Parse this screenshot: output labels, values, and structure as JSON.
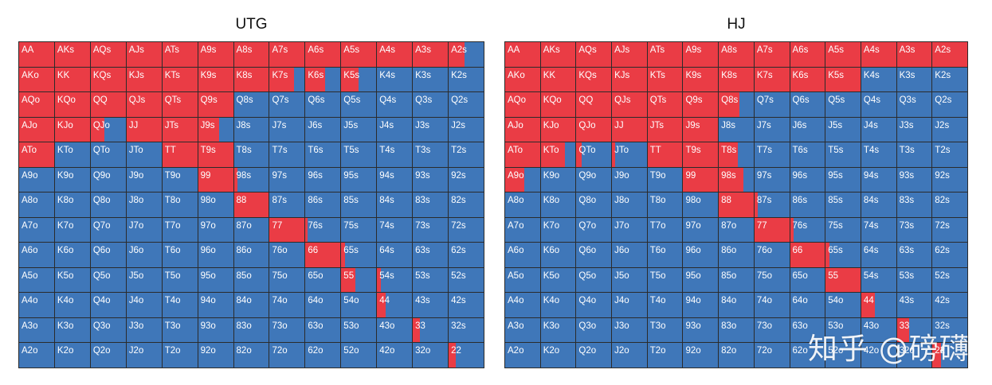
{
  "colors": {
    "raise": "#ea3c45",
    "fold": "#3f77b9",
    "grid_line": "#2b2b2b"
  },
  "ranks": [
    "A",
    "K",
    "Q",
    "J",
    "T",
    "9",
    "8",
    "7",
    "6",
    "5",
    "4",
    "3",
    "2"
  ],
  "charts": [
    {
      "id": "utg",
      "title": "UTG",
      "raise_fractions": [
        [
          1,
          1,
          1,
          1,
          1,
          1,
          1,
          1,
          1,
          1,
          1,
          1,
          0.45
        ],
        [
          1,
          1,
          1,
          1,
          1,
          1,
          1,
          0.7,
          0.55,
          0.5,
          0,
          0,
          0
        ],
        [
          1,
          1,
          1,
          1,
          1,
          1,
          0,
          0,
          0,
          0,
          0,
          0,
          0
        ],
        [
          1,
          1,
          0.4,
          1,
          1,
          0.6,
          0,
          0,
          0,
          0,
          0,
          0,
          0
        ],
        [
          1,
          0,
          0,
          0,
          1,
          1,
          0,
          0,
          0,
          0,
          0,
          0,
          0
        ],
        [
          0,
          0,
          0,
          0,
          0,
          1,
          0.1,
          0,
          0,
          0,
          0,
          0,
          0
        ],
        [
          0,
          0,
          0,
          0,
          0,
          0,
          1,
          0,
          0,
          0,
          0,
          0,
          0
        ],
        [
          0,
          0,
          0,
          0,
          0,
          0,
          0,
          1,
          0.05,
          0,
          0,
          0,
          0
        ],
        [
          0,
          0,
          0,
          0,
          0,
          0,
          0,
          0,
          1,
          0.1,
          0,
          0,
          0
        ],
        [
          0,
          0,
          0,
          0,
          0,
          0,
          0,
          0,
          0,
          0.4,
          0.1,
          0,
          0
        ],
        [
          0,
          0,
          0,
          0,
          0,
          0,
          0,
          0,
          0,
          0,
          0.25,
          0,
          0
        ],
        [
          0,
          0,
          0,
          0,
          0,
          0,
          0,
          0,
          0,
          0,
          0,
          0.2,
          0
        ],
        [
          0,
          0,
          0,
          0,
          0,
          0,
          0,
          0,
          0,
          0,
          0,
          0,
          0.2
        ]
      ]
    },
    {
      "id": "hj",
      "title": "HJ",
      "raise_fractions": [
        [
          1,
          1,
          1,
          1,
          1,
          1,
          1,
          1,
          1,
          1,
          1,
          1,
          1
        ],
        [
          1,
          1,
          1,
          1,
          1,
          1,
          1,
          1,
          1,
          1,
          0,
          0,
          0
        ],
        [
          1,
          1,
          1,
          1,
          1,
          1,
          0.6,
          0,
          0,
          0,
          0,
          0,
          0
        ],
        [
          1,
          1,
          1,
          1,
          1,
          1,
          0,
          0,
          0,
          0,
          0,
          0,
          0
        ],
        [
          1,
          0.7,
          0.15,
          0.1,
          1,
          1,
          0.55,
          0,
          0,
          0,
          0,
          0,
          0
        ],
        [
          0.55,
          0,
          0,
          0,
          0,
          1,
          0.7,
          0,
          0,
          0,
          0,
          0,
          0
        ],
        [
          0,
          0,
          0,
          0,
          0,
          0,
          1,
          0.1,
          0,
          0,
          0,
          0,
          0
        ],
        [
          0,
          0,
          0,
          0,
          0,
          0,
          0,
          1,
          0.1,
          0,
          0,
          0,
          0
        ],
        [
          0,
          0,
          0,
          0,
          0,
          0,
          0,
          0,
          1,
          0.1,
          0,
          0,
          0
        ],
        [
          0,
          0,
          0,
          0,
          0,
          0,
          0,
          0,
          0,
          1,
          0,
          0,
          0
        ],
        [
          0,
          0,
          0,
          0,
          0,
          0,
          0,
          0,
          0,
          0,
          0.4,
          0,
          0
        ],
        [
          0,
          0,
          0,
          0,
          0,
          0,
          0,
          0,
          0,
          0,
          0,
          0.35,
          0
        ],
        [
          0,
          0,
          0,
          0,
          0,
          0,
          0,
          0,
          0,
          0,
          0,
          0,
          0.25
        ]
      ]
    }
  ],
  "watermark": "知乎 @磅礴"
}
